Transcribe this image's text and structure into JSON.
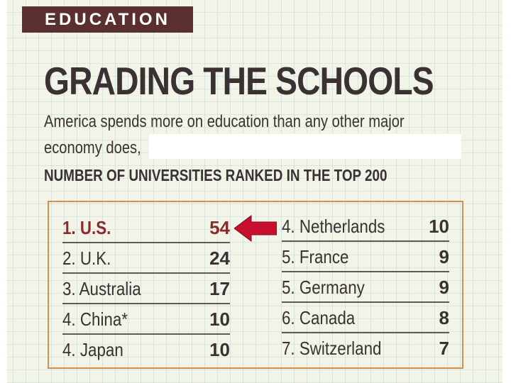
{
  "section_label": "EDUCATION",
  "headline": "GRADING THE SCHOOLS",
  "subtitle": {
    "line1": "America spends more on education than any other major",
    "line2": "economy does,"
  },
  "table_title": "NUMBER OF UNIVERSITIES RANKED IN THE TOP 200",
  "rankings_left": [
    {
      "rank": "1.",
      "country": "U.S.",
      "count": "54"
    },
    {
      "rank": "2.",
      "country": "U.K.",
      "count": "24"
    },
    {
      "rank": "3.",
      "country": "Australia",
      "count": "17"
    },
    {
      "rank": "4.",
      "country": "China*",
      "count": "10"
    },
    {
      "rank": "4.",
      "country": "Japan",
      "count": "10"
    }
  ],
  "rankings_right": [
    {
      "rank": "4.",
      "country": "Netherlands",
      "count": "10"
    },
    {
      "rank": "5.",
      "country": "France",
      "count": "9"
    },
    {
      "rank": "5.",
      "country": "Germany",
      "count": "9"
    },
    {
      "rank": "6.",
      "country": "Canada",
      "count": "8"
    },
    {
      "rank": "7.",
      "country": "Switzerland",
      "count": "7"
    }
  ],
  "colors": {
    "section_tag_bg": "#5a2f2f",
    "highlight_text": "#8b2c2c",
    "box_border": "#d3914a",
    "arrow": "#c8102e"
  },
  "icons": {
    "pointer": "left-arrow-icon"
  }
}
